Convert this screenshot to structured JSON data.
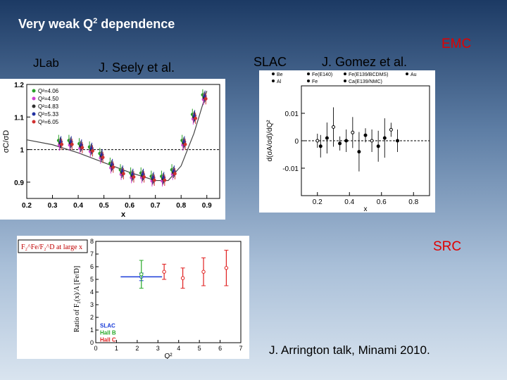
{
  "slide": {
    "title_prefix": "Very weak Q",
    "title_sup": "2",
    "title_suffix": " dependence",
    "emc_label": "EMC",
    "src_label": "SRC",
    "jlab_label": "JLab",
    "seely_label": "J. Seely et al.",
    "slac_label": "SLAC",
    "gomez_label": "J. Gomez et al.",
    "credit": "J. Arrington talk, Minami 2010.",
    "colors": {
      "accent_red": "#e00000",
      "title_white": "#ffffff"
    }
  },
  "chart_data": [
    {
      "type": "scatter",
      "ylabel": "σC/σD",
      "xlabel": "x",
      "xlim": [
        0.2,
        0.95
      ],
      "ylim": [
        0.85,
        1.2
      ],
      "x_ticks": [
        "0.2",
        "0.3",
        "0.4",
        "0.5",
        "0.6",
        "0.7",
        "0.8",
        "0.9"
      ],
      "y_ticks": [
        "0.9",
        "1",
        "1.1",
        "1.2"
      ],
      "legend": [
        "Q²=4.06",
        "Q²=4.50",
        "Q²=4.83",
        "Q²=5.33",
        "Q²=6.05"
      ],
      "legend_colors": [
        "#2aa02a",
        "#d040d0",
        "#303030",
        "#2030a0",
        "#d03030"
      ],
      "reference_line": 1.0,
      "x": [
        0.33,
        0.37,
        0.41,
        0.45,
        0.49,
        0.53,
        0.57,
        0.61,
        0.65,
        0.69,
        0.73,
        0.77,
        0.81,
        0.85,
        0.89
      ],
      "y": [
        1.02,
        1.02,
        1.01,
        1.0,
        0.98,
        0.95,
        0.93,
        0.92,
        0.92,
        0.91,
        0.91,
        0.93,
        1.02,
        1.1,
        1.16
      ]
    },
    {
      "type": "scatter",
      "ylabel": "d(σA/σd)/dQ²",
      "xlabel": "x",
      "xlim": [
        0.1,
        0.9
      ],
      "ylim": [
        -0.02,
        0.02
      ],
      "x_ticks": [
        "0.2",
        "0.4",
        "0.6",
        "0.8"
      ],
      "y_ticks": [
        "0.01",
        "0",
        "-0.01"
      ],
      "legend": [
        "Be",
        "Al",
        "Fe(E140)",
        "Fe",
        "Fe(E139/BCDMS)",
        "Ca(E139/NMC)",
        "Au"
      ],
      "x": [
        0.2,
        0.22,
        0.26,
        0.3,
        0.34,
        0.38,
        0.42,
        0.46,
        0.5,
        0.54,
        0.58,
        0.62,
        0.66,
        0.7
      ],
      "y": [
        0.0,
        -0.002,
        0.001,
        0.005,
        -0.001,
        0.0,
        0.003,
        -0.004,
        0.002,
        0.0,
        -0.002,
        0.001,
        0.004,
        0.0
      ]
    },
    {
      "type": "scatter",
      "ylabel": "Ratio of F₂(x)/A [Fe/D]",
      "xlabel": "Q²",
      "xlim": [
        0,
        7
      ],
      "ylim": [
        0,
        8
      ],
      "x_ticks": [
        "0",
        "1",
        "2",
        "3",
        "4",
        "5",
        "6",
        "7"
      ],
      "y_ticks": [
        "0",
        "1",
        "2",
        "3",
        "4",
        "5",
        "6",
        "7",
        "8"
      ],
      "legend_box_label": "F₂^Fe/F₂^D at large x",
      "legend": [
        "SLAC",
        "Hall B",
        "Hall C"
      ],
      "legend_colors": [
        "#1a3cd8",
        "#2aaa2a",
        "#e02020"
      ],
      "series": [
        {
          "name": "SLAC",
          "x": [
            2.2
          ],
          "y": [
            5.2
          ],
          "yerr": [
            0.3
          ],
          "xerr": [
            1.0
          ]
        },
        {
          "name": "Hall B",
          "x": [
            2.2
          ],
          "y": [
            5.4
          ],
          "yerr": [
            1.1
          ],
          "xerr": [
            0
          ]
        },
        {
          "name": "Hall C",
          "x": [
            3.3,
            4.2,
            5.2,
            6.3
          ],
          "y": [
            5.6,
            5.1,
            5.6,
            5.9
          ],
          "yerr": [
            0.6,
            0.8,
            1.1,
            1.4
          ],
          "xerr": [
            0,
            0,
            0,
            0
          ]
        }
      ]
    }
  ]
}
